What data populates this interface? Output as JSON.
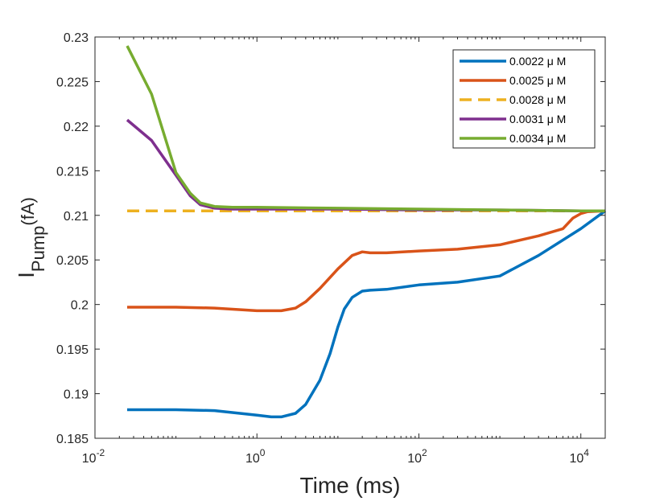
{
  "chart_data": {
    "type": "line",
    "title": "",
    "xlabel": "Time (ms)",
    "ylabel_main": "I",
    "ylabel_sub": "Pump",
    "ylabel_unit": "(fA)",
    "xscale": "log",
    "xlim": [
      0.01,
      20000
    ],
    "ylim": [
      0.185,
      0.23
    ],
    "grid": false,
    "legend_position": "top-right",
    "xticks": [
      {
        "base": "10",
        "exp": "-2",
        "value": 0.01
      },
      {
        "base": "10",
        "exp": "0",
        "value": 1
      },
      {
        "base": "10",
        "exp": "2",
        "value": 100
      },
      {
        "base": "10",
        "exp": "4",
        "value": 10000
      }
    ],
    "yticks": [
      "0.185",
      "0.19",
      "0.195",
      "0.2",
      "0.205",
      "0.21",
      "0.215",
      "0.22",
      "0.225",
      "0.23"
    ],
    "series": [
      {
        "name": "0.0022 μ M",
        "color": "#0072BD",
        "dash": false,
        "x": [
          0.025,
          0.1,
          0.3,
          1,
          1.5,
          2,
          3,
          4,
          6,
          8,
          10,
          12,
          15,
          20,
          25,
          40,
          100,
          300,
          1000,
          3000,
          10000,
          20000
        ],
        "y": [
          0.1882,
          0.1882,
          0.1881,
          0.1876,
          0.1874,
          0.1874,
          0.1878,
          0.1888,
          0.1915,
          0.1945,
          0.1975,
          0.1995,
          0.2008,
          0.2015,
          0.2016,
          0.2017,
          0.2022,
          0.2025,
          0.2032,
          0.2055,
          0.2085,
          0.2105
        ]
      },
      {
        "name": "0.0025 μ M",
        "color": "#D95319",
        "dash": false,
        "x": [
          0.025,
          0.1,
          0.3,
          1,
          2,
          3,
          4,
          6,
          10,
          15,
          20,
          25,
          40,
          100,
          300,
          1000,
          3000,
          6000,
          8000,
          10000,
          12000,
          20000
        ],
        "y": [
          0.1997,
          0.1997,
          0.1996,
          0.1993,
          0.1993,
          0.1996,
          0.2003,
          0.2018,
          0.204,
          0.2055,
          0.2059,
          0.2058,
          0.2058,
          0.206,
          0.2062,
          0.2067,
          0.2077,
          0.2085,
          0.2097,
          0.2102,
          0.2104,
          0.2105
        ]
      },
      {
        "name": "0.0028  μ M",
        "color": "#EDB120",
        "dash": true,
        "x": [
          0.025,
          20000
        ],
        "y": [
          0.2105,
          0.2105
        ]
      },
      {
        "name": "0.0031  μ M",
        "color": "#7E2F8E",
        "dash": false,
        "x": [
          0.025,
          0.05,
          0.1,
          0.15,
          0.2,
          0.3,
          0.5,
          1,
          10,
          100,
          1000,
          10000,
          20000
        ],
        "y": [
          0.2207,
          0.2184,
          0.2145,
          0.2122,
          0.2112,
          0.2108,
          0.2107,
          0.2107,
          0.2107,
          0.2106,
          0.2106,
          0.2105,
          0.2105
        ]
      },
      {
        "name": "0.0034 μ M",
        "color": "#77AC30",
        "dash": false,
        "x": [
          0.025,
          0.05,
          0.1,
          0.15,
          0.2,
          0.3,
          0.5,
          1,
          10,
          100,
          1000,
          10000,
          20000
        ],
        "y": [
          0.229,
          0.2236,
          0.2148,
          0.2125,
          0.2114,
          0.211,
          0.2109,
          0.2109,
          0.2108,
          0.2107,
          0.2106,
          0.2105,
          0.2105
        ]
      }
    ]
  }
}
